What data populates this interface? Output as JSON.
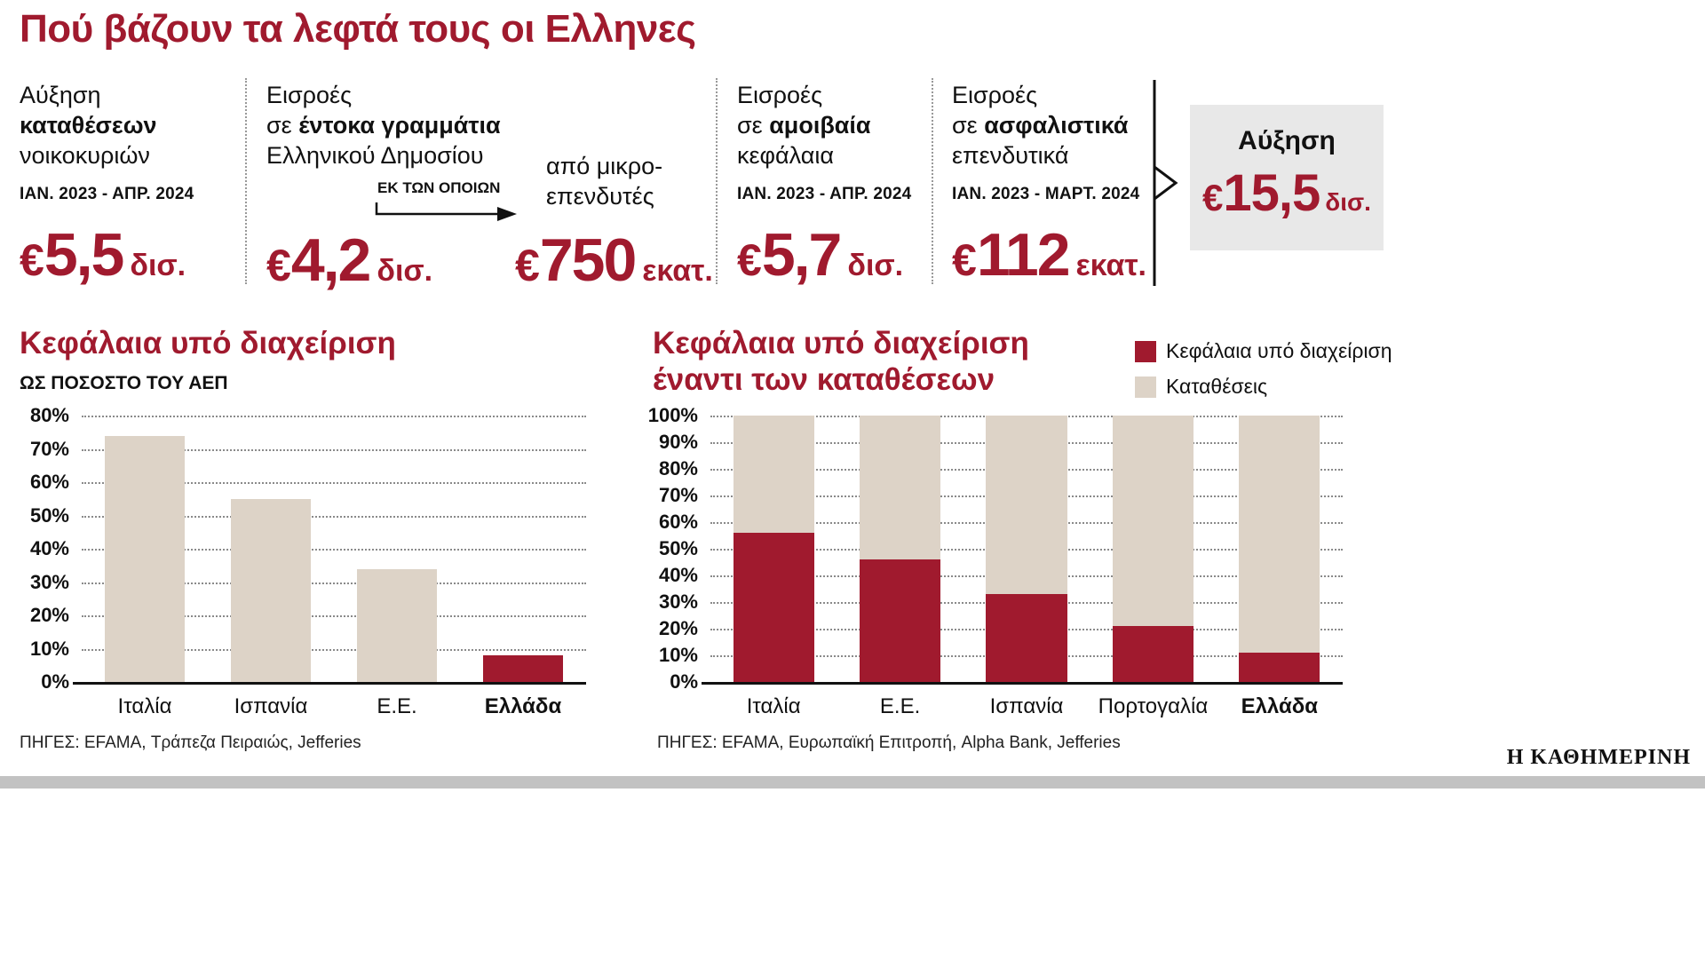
{
  "page": {
    "title": "Πού βάζουν τα λεφτά τους οι Ελληνες",
    "brand": "Η ΚΑΘΗΜΕΡΙΝΗ"
  },
  "colors": {
    "accent_red": "#a01a2e",
    "beige": "#ddd3c7",
    "box_gray": "#e8e8e8"
  },
  "stats": [
    {
      "line1": "Αύξηση",
      "line2_pre": "",
      "line2_bold": "καταθέσεων",
      "line3": "νοικοκυριών",
      "period": "ΙΑΝ. 2023 - ΑΠΡ. 2024",
      "currency": "€",
      "value": "5,5",
      "unit": "δισ."
    },
    {
      "line1": "Εισροές",
      "line2_pre": "σε ",
      "line2_bold": "έντοκα γραμμάτια",
      "line3": "Ελληνικού Δημοσίου",
      "note": "ΕΚ ΤΩΝ ΟΠΟΙΩΝ",
      "sub_label_line1": "από μικρο-",
      "sub_label_line2": "επενδυτές",
      "currency": "€",
      "value": "4,2",
      "unit": "δισ.",
      "sub_currency": "€",
      "sub_value": "750",
      "sub_unit": "εκατ."
    },
    {
      "line1": "Εισροές",
      "line2_pre": "σε ",
      "line2_bold": "αμοιβαία",
      "line3": "κεφάλαια",
      "period": "ΙΑΝ. 2023 - ΑΠΡ. 2024",
      "currency": "€",
      "value": "5,7",
      "unit": "δισ."
    },
    {
      "line1": "Εισροές",
      "line2_pre": "σε ",
      "line2_bold": "ασφαλιστικά",
      "line3": "επενδυτικά",
      "period": "ΙΑΝ. 2023 - ΜΑΡΤ. 2024",
      "currency": "€",
      "value": "112",
      "unit": "εκατ."
    }
  ],
  "total": {
    "label": "Αύξηση",
    "currency": "€",
    "value": "15,5",
    "unit": "δισ."
  },
  "chart_data": [
    {
      "type": "bar",
      "title": "Κεφάλαια υπό διαχείριση",
      "subtitle": "ΩΣ ΠΟΣΟΣΤΟ ΤΟΥ ΑΕΠ",
      "categories": [
        "Ιταλία",
        "Ισπανία",
        "Ε.Ε.",
        "Ελλάδα"
      ],
      "values": [
        74,
        55,
        34,
        8
      ],
      "bar_colors": [
        "#ddd3c7",
        "#ddd3c7",
        "#ddd3c7",
        "#a01a2e"
      ],
      "bold_category": "Ελλάδα",
      "ylim": [
        0,
        80
      ],
      "ytick_step": 10,
      "grid": "dotted-horizontal",
      "source": "ΠΗΓΕΣ: EFAMA, Τράπεζα Πειραιώς, Jefferies"
    },
    {
      "type": "stacked-bar",
      "title_lines": [
        "Κεφάλαια υπό διαχείριση",
        "έναντι των καταθέσεων"
      ],
      "categories": [
        "Ιταλία",
        "Ε.Ε.",
        "Ισπανία",
        "Πορτογαλία",
        "Ελλάδα"
      ],
      "series": [
        {
          "name": "Κεφάλαια υπό διαχείριση",
          "color": "#a01a2e",
          "values": [
            56,
            46,
            33,
            21,
            11
          ]
        },
        {
          "name": "Καταθέσεις",
          "color": "#ddd3c7",
          "values": [
            44,
            54,
            67,
            79,
            89
          ]
        }
      ],
      "bold_category": "Ελλάδα",
      "ylim": [
        0,
        100
      ],
      "ytick_step": 10,
      "grid": "dotted-horizontal",
      "legend_position": "top-right",
      "source": "ΠΗΓΕΣ: EFAMA, Ευρωπαϊκή Επιτροπή, Alpha Bank, Jefferies"
    }
  ]
}
